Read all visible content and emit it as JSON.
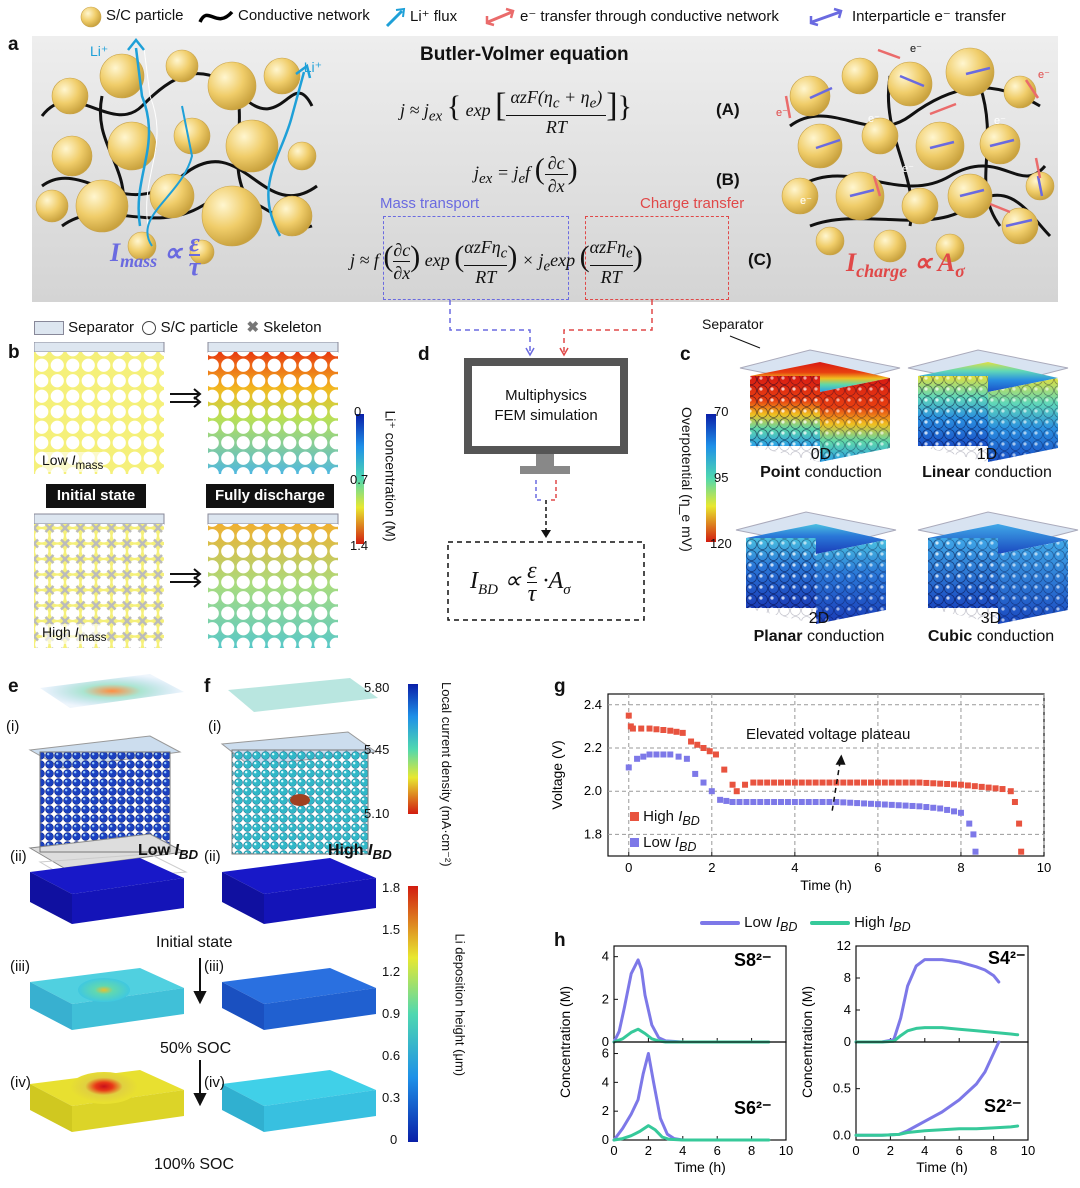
{
  "legend": {
    "sc_particle": "S/C particle",
    "conductive_network": "Conductive network",
    "li_flux": "Li⁺ flux",
    "e_transfer_network": "e⁻ transfer through conductive network",
    "interparticle_transfer": "Interparticle e⁻ transfer"
  },
  "panel_a": {
    "label": "a",
    "title": "Butler-Volmer equation",
    "li_label_1": "Li⁺",
    "li_label_2": "Li⁺",
    "imass_formula": "I_mass ∝ ε/τ",
    "icharge_formula": "I_charge ∝ A_σ",
    "eq_a": "j ≈ j_ex { exp [ αzF(η_c + η_e) / RT ] }",
    "eq_a_label": "(A)",
    "eq_b": "j_ex = j_e f ( ∂c / ∂x )",
    "eq_b_label": "(B)",
    "eq_c_label": "(C)",
    "mass_transport": "Mass transport",
    "charge_transfer": "Charge transfer",
    "e_label": "e⁻"
  },
  "panel_b": {
    "label": "b",
    "legend_separator": "Separator",
    "legend_particle": "S/C particle",
    "legend_skeleton": "Skeleton",
    "low": "Low I_mass",
    "high": "High I_mass",
    "initial_state": "Initial state",
    "fully_discharge": "Fully discharge",
    "colorbar_title": "Li⁺ concentration (M)",
    "colorbar_ticks": [
      "0",
      "0.7",
      "1.4"
    ]
  },
  "panel_d": {
    "label": "d",
    "monitor_text_1": "Multiphysics",
    "monitor_text_2": "FEM simulation",
    "result": "I_BD ∝ ε/τ · A_σ"
  },
  "panel_c": {
    "label": "c",
    "separator": "Separator",
    "colorbar_title": "Overpotential (η_e mV)",
    "colorbar_ticks": [
      "70",
      "95",
      "120"
    ],
    "cubes": [
      {
        "dim": "0D",
        "bold": "Point",
        "rest": " conduction"
      },
      {
        "dim": "1D",
        "bold": "Linear",
        "rest": " conduction"
      },
      {
        "dim": "2D",
        "bold": "Planar",
        "rest": " conduction"
      },
      {
        "dim": "3D",
        "bold": "Cubic",
        "rest": " conduction"
      }
    ]
  },
  "panel_e": {
    "label": "e",
    "low": "Low I_BD",
    "i": "(i)",
    "ii": "(ii)",
    "iii": "(iii)",
    "iv": "(iv)"
  },
  "panel_f": {
    "label": "f",
    "high": "High I_BD",
    "i": "(i)",
    "ii": "(ii)",
    "iii": "(iii)",
    "iv": "(iv)"
  },
  "panel_ef": {
    "initial_state": "Initial state",
    "soc50": "50% SOC",
    "soc100": "100% SOC",
    "current_cbar_title": "Local current density (mA·cm⁻²)",
    "current_cbar_ticks": [
      "5.80",
      "5.45",
      "5.10"
    ],
    "li_cbar_title": "Li deposition height (μm)",
    "li_cbar_ticks": [
      "1.8",
      "1.5",
      "1.2",
      "0.9",
      "0.6",
      "0.3",
      "0"
    ]
  },
  "panel_g": {
    "label": "g",
    "annotation": "Elevated voltage plateau"
  },
  "panel_h": {
    "label": "h",
    "legend_low": "Low I_BD",
    "legend_high": "High I_BD"
  },
  "colors": {
    "high": "#e8533f",
    "low": "#7d78e8",
    "green": "#36c99a",
    "mass": "#6a6ae0",
    "charge": "#e04848"
  },
  "chart_data": [
    {
      "type": "scatter",
      "panel": "g",
      "xlabel": "Time (h)",
      "ylabel": "Voltage (V)",
      "xlim": [
        -0.5,
        10
      ],
      "ylim": [
        1.7,
        2.45
      ],
      "xticks": [
        0,
        2,
        4,
        6,
        8,
        10
      ],
      "yticks": [
        1.8,
        2.0,
        2.2,
        2.4
      ],
      "grid": true,
      "legend_position": "bottom-left",
      "series": [
        {
          "name": "High I_BD",
          "x": [
            0,
            0.05,
            0.1,
            0.5,
            1.0,
            1.3,
            1.5,
            1.8,
            2.1,
            2.3,
            2.5,
            2.6,
            2.8,
            3,
            4,
            5,
            6,
            7,
            8,
            8.5,
            9,
            9.2,
            9.3,
            9.4,
            9.45
          ],
          "y": [
            2.35,
            2.3,
            2.29,
            2.29,
            2.28,
            2.27,
            2.23,
            2.2,
            2.17,
            2.1,
            2.03,
            2.0,
            2.03,
            2.04,
            2.04,
            2.04,
            2.04,
            2.04,
            2.03,
            2.02,
            2.01,
            2.0,
            1.95,
            1.85,
            1.72
          ]
        },
        {
          "name": "Low I_BD",
          "x": [
            0,
            0.2,
            0.5,
            1.0,
            1.4,
            1.6,
            1.8,
            2.0,
            2.2,
            2.5,
            3,
            4,
            5,
            6,
            7,
            7.5,
            8,
            8.2,
            8.3,
            8.35
          ],
          "y": [
            2.11,
            2.15,
            2.17,
            2.17,
            2.15,
            2.08,
            2.04,
            2.0,
            1.96,
            1.95,
            1.95,
            1.95,
            1.95,
            1.94,
            1.93,
            1.92,
            1.9,
            1.85,
            1.8,
            1.72
          ]
        }
      ]
    },
    {
      "type": "line",
      "panel": "h",
      "species": "S8²⁻",
      "xlim": [
        0,
        10
      ],
      "ylim": [
        0,
        4.5
      ],
      "yticks": [
        0,
        2,
        4
      ],
      "series": [
        {
          "name": "Low I_BD",
          "x": [
            0,
            0.3,
            0.6,
            1.0,
            1.4,
            1.6,
            1.8,
            2.2,
            2.6,
            3,
            4,
            6,
            8
          ],
          "y": [
            0,
            0.5,
            1.6,
            3.2,
            3.85,
            3.4,
            2.2,
            0.8,
            0.2,
            0.05,
            0,
            0,
            0
          ]
        },
        {
          "name": "High I_BD",
          "x": [
            0,
            0.5,
            1.0,
            1.4,
            1.8,
            2.2,
            2.6,
            3,
            4,
            6,
            8,
            9
          ],
          "y": [
            0,
            0.15,
            0.45,
            0.6,
            0.4,
            0.15,
            0.05,
            0,
            0,
            0,
            0,
            0
          ]
        }
      ]
    },
    {
      "type": "line",
      "panel": "h",
      "species": "S6²⁻",
      "xlim": [
        0,
        10
      ],
      "ylim": [
        0,
        6.8
      ],
      "yticks": [
        0,
        2,
        4,
        6
      ],
      "series": [
        {
          "name": "Low I_BD",
          "x": [
            0,
            0.5,
            1.0,
            1.4,
            1.7,
            2.0,
            2.3,
            2.7,
            3.1,
            3.5,
            4,
            6,
            8
          ],
          "y": [
            0,
            0.8,
            1.8,
            2.8,
            4.6,
            6.0,
            4.0,
            1.5,
            0.4,
            0.1,
            0,
            0,
            0
          ]
        },
        {
          "name": "High I_BD",
          "x": [
            0,
            0.5,
            1.0,
            1.5,
            2.0,
            2.4,
            2.8,
            3.2,
            4,
            6,
            8,
            9
          ],
          "y": [
            0,
            0.1,
            0.3,
            0.6,
            1.0,
            0.7,
            0.2,
            0.05,
            0,
            0,
            0,
            0
          ]
        }
      ]
    },
    {
      "type": "line",
      "panel": "h",
      "species": "S4²⁻",
      "xlim": [
        0,
        10
      ],
      "ylim": [
        0,
        12
      ],
      "yticks": [
        0,
        4,
        8,
        12
      ],
      "series": [
        {
          "name": "Low I_BD",
          "x": [
            0,
            1.5,
            2.2,
            2.6,
            3.0,
            3.5,
            4.0,
            5,
            6,
            7,
            7.5,
            8,
            8.3
          ],
          "y": [
            0,
            0,
            0.3,
            3,
            7,
            9.5,
            10.3,
            10.3,
            10.0,
            9.4,
            9.0,
            8.3,
            7.5
          ]
        },
        {
          "name": "High I_BD",
          "x": [
            0,
            1.5,
            2.2,
            2.6,
            3.0,
            3.5,
            4.0,
            5,
            6,
            7,
            8,
            9,
            9.4
          ],
          "y": [
            0,
            0,
            0.1,
            0.8,
            1.4,
            1.7,
            1.8,
            1.8,
            1.6,
            1.4,
            1.2,
            1.0,
            0.9
          ]
        }
      ]
    },
    {
      "type": "line",
      "panel": "h",
      "species": "S2²⁻",
      "xlim": [
        0,
        10
      ],
      "ylim": [
        -0.05,
        1.0
      ],
      "yticks": [
        0,
        0.5
      ],
      "series": [
        {
          "name": "Low I_BD",
          "x": [
            0,
            1.5,
            2.5,
            3.0,
            3.5,
            4,
            5,
            6,
            7,
            7.5,
            8,
            8.3
          ],
          "y": [
            0,
            0,
            0.01,
            0.05,
            0.1,
            0.15,
            0.25,
            0.38,
            0.55,
            0.68,
            0.88,
            1.0
          ]
        },
        {
          "name": "High I_BD",
          "x": [
            0,
            1.5,
            2.5,
            3.0,
            3.5,
            4,
            5,
            6,
            7,
            8,
            9,
            9.4
          ],
          "y": [
            0,
            0,
            0.01,
            0.03,
            0.04,
            0.05,
            0.06,
            0.07,
            0.07,
            0.08,
            0.09,
            0.1
          ]
        }
      ]
    }
  ],
  "axis_labels": {
    "time": "Time (h)",
    "concentration": "Concentration (M)"
  }
}
